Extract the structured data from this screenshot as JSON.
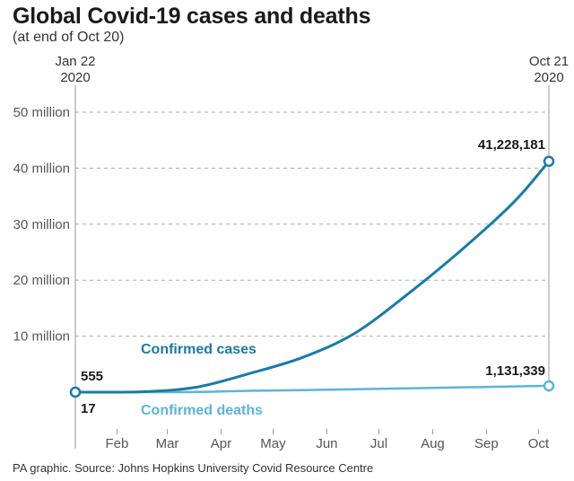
{
  "header": {
    "title": "Global Covid-19 cases and deaths",
    "subtitle": "(at end of Oct 20)"
  },
  "footer": {
    "source": "PA graphic. Source: Johns Hopkins University Covid Resource Centre"
  },
  "colors": {
    "cases": "#1a7aa8",
    "deaths": "#5bb5d8",
    "grid": "#aaaaaa",
    "axis": "#999999"
  },
  "chart_data": {
    "type": "line",
    "title": "Global Covid-19 cases and deaths",
    "subtitle": "(at end of Oct 20)",
    "xlabel": "",
    "ylabel": "",
    "ylim": [
      0,
      50000000
    ],
    "grid": true,
    "legend": "inline labels",
    "y_ticks": [
      {
        "value": 10000000,
        "label": "10 million"
      },
      {
        "value": 20000000,
        "label": "20 million"
      },
      {
        "value": 30000000,
        "label": "30 million"
      },
      {
        "value": 40000000,
        "label": "40 million"
      },
      {
        "value": 50000000,
        "label": "50 million"
      }
    ],
    "x_ticks": [
      {
        "date": "2020-02-15",
        "label": "Feb"
      },
      {
        "date": "2020-03-15",
        "label": "Mar"
      },
      {
        "date": "2020-04-15",
        "label": "Apr"
      },
      {
        "date": "2020-05-15",
        "label": "May"
      },
      {
        "date": "2020-06-15",
        "label": "Jun"
      },
      {
        "date": "2020-07-15",
        "label": "Jul"
      },
      {
        "date": "2020-08-15",
        "label": "Aug"
      },
      {
        "date": "2020-09-15",
        "label": "Sep"
      },
      {
        "date": "2020-10-15",
        "label": "Oct"
      }
    ],
    "start_marker": {
      "date": "2020-01-22",
      "line1": "Jan 22",
      "line2": "2020"
    },
    "end_marker": {
      "date": "2020-10-21",
      "line1": "Oct 21",
      "line2": "2020"
    },
    "series": [
      {
        "key": "cases",
        "name": "Confirmed cases",
        "start_label": "555",
        "end_label": "41,228,181",
        "points": [
          {
            "x": "2020-01-22",
            "y": 555
          },
          {
            "x": "2020-03-01",
            "y": 88000
          },
          {
            "x": "2020-04-01",
            "y": 900000
          },
          {
            "x": "2020-05-01",
            "y": 3300000
          },
          {
            "x": "2020-06-01",
            "y": 6200000
          },
          {
            "x": "2020-07-01",
            "y": 10500000
          },
          {
            "x": "2020-08-01",
            "y": 17600000
          },
          {
            "x": "2020-09-01",
            "y": 25500000
          },
          {
            "x": "2020-10-01",
            "y": 34000000
          },
          {
            "x": "2020-10-21",
            "y": 41228181
          }
        ]
      },
      {
        "key": "deaths",
        "name": "Confirmed deaths",
        "start_label": "17",
        "end_label": "1,131,339",
        "points": [
          {
            "x": "2020-01-22",
            "y": 17
          },
          {
            "x": "2020-03-01",
            "y": 3000
          },
          {
            "x": "2020-04-01",
            "y": 47000
          },
          {
            "x": "2020-05-01",
            "y": 240000
          },
          {
            "x": "2020-06-01",
            "y": 375000
          },
          {
            "x": "2020-07-01",
            "y": 515000
          },
          {
            "x": "2020-08-01",
            "y": 685000
          },
          {
            "x": "2020-09-01",
            "y": 860000
          },
          {
            "x": "2020-10-01",
            "y": 1020000
          },
          {
            "x": "2020-10-21",
            "y": 1131339
          }
        ]
      }
    ]
  }
}
